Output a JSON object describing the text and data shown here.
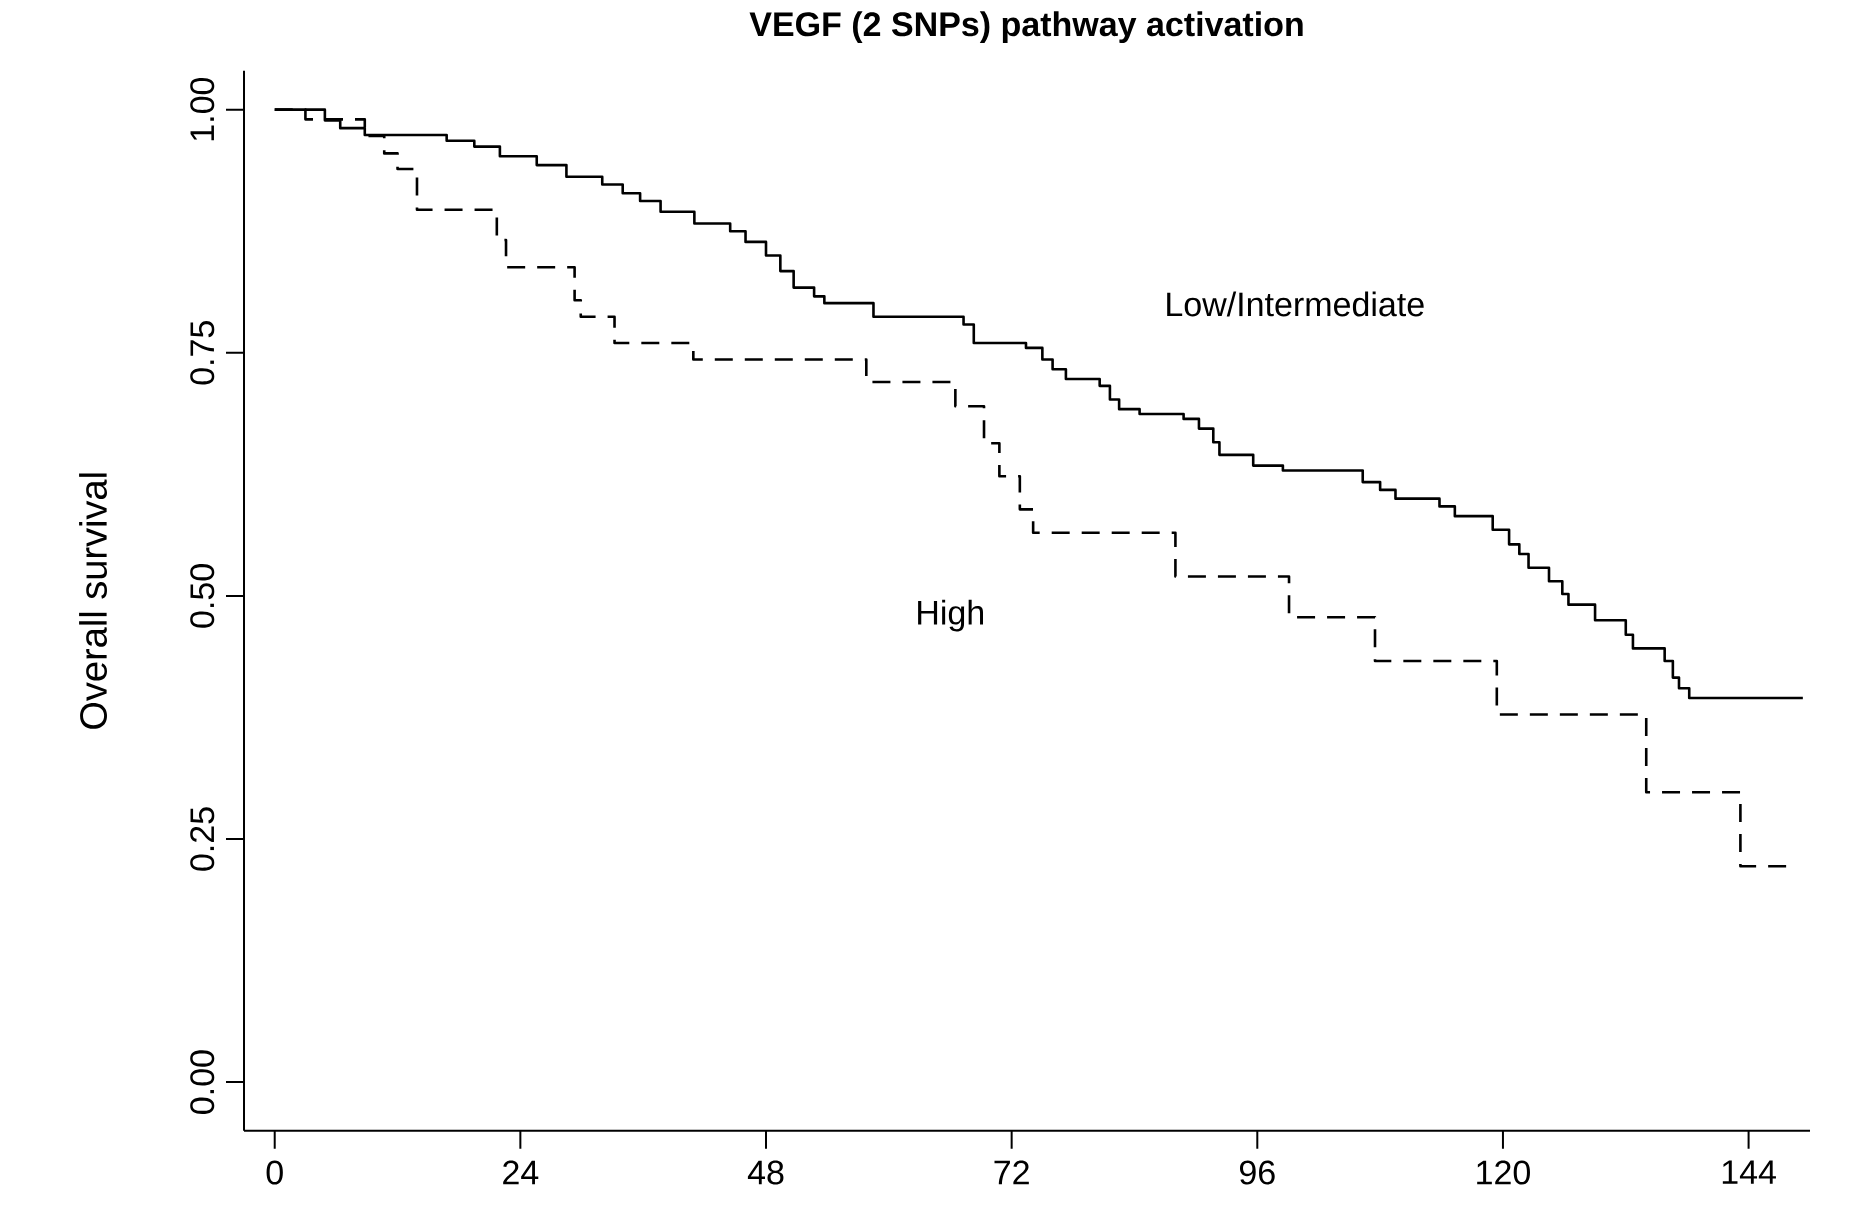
{
  "chart_data": {
    "type": "step",
    "title": "VEGF (2 SNPs) pathway activation",
    "ylabel": "Overall survival",
    "xlim": [
      -3,
      150
    ],
    "ylim": [
      -0.05,
      1.04
    ],
    "xticks": [
      0,
      24,
      48,
      72,
      96,
      120,
      144
    ],
    "yticks": [
      {
        "value": 0,
        "label": "0.00"
      },
      0.25,
      {
        "value": 0.5,
        "label": "0.50"
      },
      0.75,
      {
        "value": 1,
        "label": "1.00"
      }
    ],
    "grid": false,
    "marker": "none",
    "series": [
      {
        "color": "#000000",
        "line_style": "solid",
        "x": [
          0,
          4.9,
          6.4,
          8.8,
          16.8,
          19.5,
          22,
          25.6,
          28.5,
          32,
          34,
          35.7,
          37.7,
          41,
          44.5,
          46,
          48,
          49.4,
          50.7,
          52.7,
          53.7,
          58.5,
          67.3,
          68.3,
          73.4,
          75,
          76,
          77.3,
          80.6,
          81.6,
          82.5,
          84.5,
          88.8,
          90.3,
          91.7,
          92.3,
          95.6,
          98.5,
          106.3,
          108,
          109.5,
          113.8,
          115.3,
          119,
          120.6,
          121.6,
          122.5,
          124.5,
          125.8,
          126.4,
          129,
          132,
          132.7,
          135.8,
          136.6,
          137.2,
          138.2,
          149.3
        ],
        "values": [
          1.0,
          0.989,
          0.981,
          0.974,
          0.968,
          0.962,
          0.952,
          0.943,
          0.931,
          0.923,
          0.914,
          0.906,
          0.895,
          0.883,
          0.875,
          0.864,
          0.85,
          0.834,
          0.817,
          0.808,
          0.801,
          0.787,
          0.779,
          0.76,
          0.755,
          0.743,
          0.733,
          0.723,
          0.716,
          0.702,
          0.692,
          0.687,
          0.682,
          0.672,
          0.658,
          0.645,
          0.634,
          0.629,
          0.617,
          0.609,
          0.6,
          0.592,
          0.582,
          0.568,
          0.553,
          0.543,
          0.529,
          0.515,
          0.502,
          0.491,
          0.475,
          0.46,
          0.446,
          0.433,
          0.416,
          0.405,
          0.395,
          0.395
        ]
      },
      {
        "color": "#000000",
        "line_style": "dashed",
        "x": [
          0,
          3,
          8.8,
          10.7,
          12,
          13.9,
          21.7,
          22.6,
          29.3,
          29.9,
          33.2,
          40.9,
          57.8,
          66.5,
          69.3,
          70.8,
          72.8,
          74.1,
          88,
          99.1,
          107.5,
          119.4,
          134,
          143.2,
          147.9
        ],
        "values": [
          1.0,
          0.99,
          0.973,
          0.955,
          0.939,
          0.897,
          0.866,
          0.838,
          0.804,
          0.787,
          0.76,
          0.743,
          0.72,
          0.695,
          0.657,
          0.623,
          0.589,
          0.565,
          0.52,
          0.478,
          0.433,
          0.378,
          0.298,
          0.222,
          0.222
        ]
      }
    ],
    "annotations": [
      "Low/Intermediate",
      "High"
    ]
  }
}
